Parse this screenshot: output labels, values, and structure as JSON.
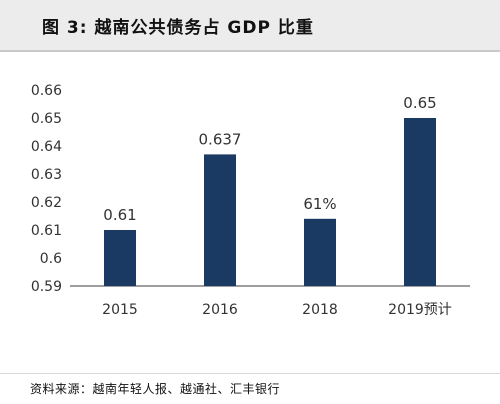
{
  "title": "图  3:  越南公共债务占 GDP 比重",
  "source": "资料来源：越南年轻人报、越通社、汇丰银行",
  "colors": {
    "bar": "#1b3a63",
    "axis": "#7f7f7f",
    "text": "#333333"
  },
  "chart_data": {
    "type": "bar",
    "title": "",
    "xlabel": "",
    "ylabel": "",
    "categories": [
      "2015",
      "2016",
      "2018",
      "2019预计"
    ],
    "values": [
      0.61,
      0.637,
      0.614,
      0.65
    ],
    "data_labels": [
      "0.61",
      "0.637",
      "61%",
      "0.65"
    ],
    "ylim": [
      0.59,
      0.66
    ],
    "y_ticks": [
      0.66,
      0.65,
      0.64,
      0.63,
      0.62,
      0.61,
      0.6,
      0.59
    ],
    "y_tick_labels": [
      "0.66",
      "0.65",
      "0.64",
      "0.63",
      "0.62",
      "0.61",
      "0.6",
      "0.59"
    ],
    "grid": false,
    "legend": "none"
  }
}
